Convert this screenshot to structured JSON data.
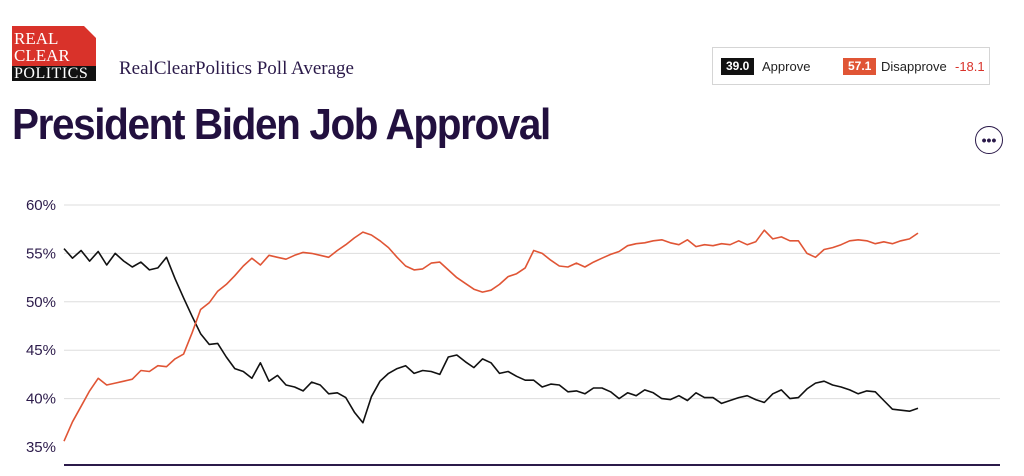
{
  "header": {
    "logo_line1": "REAL",
    "logo_line2": "CLEAR",
    "logo_line3": "POLITICS",
    "subtitle": "RealClearPolitics Poll Average",
    "title": "President Biden Job Approval"
  },
  "legend": {
    "approve_value": "39.0",
    "approve_label": "Approve",
    "disapprove_value": "57.1",
    "disapprove_label": "Disapprove",
    "spread": "-18.1"
  },
  "menu_icon": "more-horizontal-icon",
  "colors": {
    "approve": "#111111",
    "disapprove": "#e05535",
    "spread": "#d9322a",
    "title": "#22103f"
  },
  "chart_data": {
    "type": "line",
    "title": "President Biden Job Approval",
    "xlabel": "",
    "ylabel": "",
    "ylim": [
      35,
      60
    ],
    "y_ticks": [
      "35%",
      "40%",
      "45%",
      "50%",
      "55%",
      "60%"
    ],
    "y_tick_values": [
      35,
      40,
      45,
      50,
      55,
      60
    ],
    "grid": true,
    "legend": "top-right",
    "x": [
      0,
      1,
      2,
      3,
      4,
      5,
      6,
      7,
      8,
      9,
      10,
      11,
      12,
      13,
      14,
      15,
      16,
      17,
      18,
      19,
      20,
      21,
      22,
      23,
      24,
      25,
      26,
      27,
      28,
      29,
      30,
      31,
      32,
      33,
      34,
      35,
      36,
      37,
      38,
      39,
      40,
      41,
      42,
      43,
      44,
      45,
      46,
      47,
      48,
      49,
      50,
      51,
      52,
      53,
      54,
      55,
      56,
      57,
      58,
      59,
      60,
      61,
      62,
      63,
      64,
      65,
      66,
      67,
      68,
      69,
      70,
      71,
      72,
      73,
      74,
      75,
      76,
      77,
      78,
      79,
      80,
      81,
      82,
      83,
      84,
      85,
      86,
      87,
      88,
      89,
      90,
      91,
      92,
      93,
      94,
      95,
      96,
      97,
      98,
      99,
      100
    ],
    "series": [
      {
        "name": "Approve",
        "values": [
          55.5,
          54.5,
          55.3,
          54.2,
          55.2,
          53.8,
          55.0,
          54.2,
          53.6,
          54.1,
          53.3,
          53.5,
          54.6,
          52.4,
          50.4,
          48.5,
          46.7,
          45.6,
          45.7,
          44.3,
          43.1,
          42.8,
          42.1,
          43.7,
          41.8,
          42.4,
          41.4,
          41.2,
          40.8,
          41.7,
          41.4,
          40.5,
          40.6,
          40.1,
          38.6,
          37.5,
          40.2,
          41.8,
          42.6,
          43.1,
          43.4,
          42.6,
          42.9,
          42.8,
          42.5,
          44.3,
          44.5,
          43.8,
          43.2,
          44.1,
          43.7,
          42.6,
          42.8,
          42.3,
          41.9,
          41.9,
          41.2,
          41.5,
          41.4,
          40.7,
          40.8,
          40.5,
          41.1,
          41.1,
          40.7,
          40.0,
          40.6,
          40.3,
          40.9,
          40.6,
          40.0,
          39.9,
          40.3,
          39.8,
          40.6,
          40.1,
          40.1,
          39.5,
          39.8,
          40.1,
          40.3,
          39.9,
          39.6,
          40.5,
          40.9,
          40.0,
          40.1,
          41.0,
          41.6,
          41.8,
          41.4,
          41.2,
          40.9,
          40.5,
          40.8,
          40.7,
          39.8,
          38.9,
          38.8,
          38.7,
          39.0
        ]
      },
      {
        "name": "Disapprove",
        "values": [
          35.6,
          37.6,
          39.2,
          40.8,
          42.1,
          41.4,
          41.6,
          41.8,
          42.0,
          42.9,
          42.8,
          43.4,
          43.3,
          44.1,
          44.6,
          46.8,
          49.2,
          49.9,
          51.1,
          51.8,
          52.7,
          53.7,
          54.5,
          53.8,
          54.8,
          54.6,
          54.4,
          54.8,
          55.1,
          55.0,
          54.8,
          54.6,
          55.3,
          55.9,
          56.6,
          57.2,
          56.9,
          56.3,
          55.6,
          54.6,
          53.7,
          53.3,
          53.4,
          54.0,
          54.1,
          53.3,
          52.5,
          51.9,
          51.3,
          51.0,
          51.2,
          51.8,
          52.6,
          52.9,
          53.5,
          55.3,
          55.0,
          54.3,
          53.7,
          53.6,
          54.0,
          53.6,
          54.1,
          54.5,
          54.9,
          55.2,
          55.8,
          56.0,
          56.1,
          56.3,
          56.4,
          56.1,
          55.9,
          56.4,
          55.7,
          55.9,
          55.8,
          56.0,
          55.9,
          56.3,
          55.9,
          56.2,
          57.4,
          56.5,
          56.7,
          56.3,
          56.3,
          55.0,
          54.6,
          55.4,
          55.6,
          55.9,
          56.3,
          56.4,
          56.3,
          56.0,
          56.2,
          56.0,
          56.3,
          56.5,
          57.1
        ]
      }
    ]
  }
}
